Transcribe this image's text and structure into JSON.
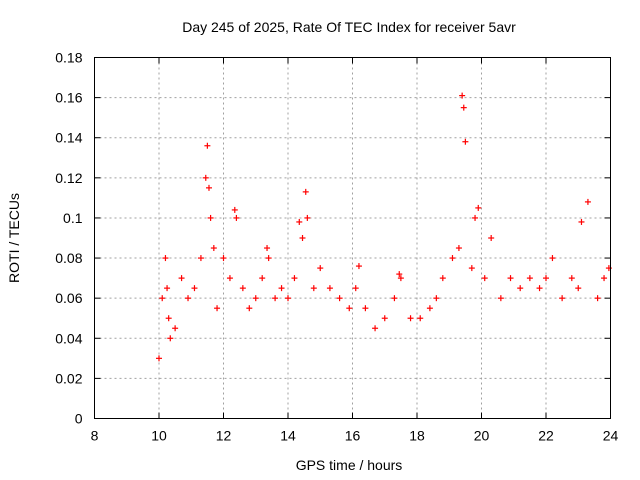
{
  "chart_data": {
    "type": "scatter",
    "title": "Day 245 of 2025, Rate Of TEC Index for receiver 5avr",
    "xlabel": "GPS time / hours",
    "ylabel": "ROTI / TECUs",
    "xlim": [
      8,
      24
    ],
    "ylim": [
      0,
      0.18
    ],
    "xticks": [
      "8",
      "10",
      "12",
      "14",
      "16",
      "18",
      "20",
      "22",
      "24"
    ],
    "yticks": [
      "0",
      "0.02",
      "0.04",
      "0.06",
      "0.08",
      "0.1",
      "0.12",
      "0.14",
      "0.16",
      "0.18"
    ],
    "grid": true,
    "marker": "+",
    "series": [
      {
        "color": "#ff0000",
        "x": [
          10.0,
          10.1,
          10.2,
          10.25,
          10.3,
          10.35,
          10.5,
          10.7,
          10.9,
          11.1,
          11.3,
          11.45,
          11.5,
          11.55,
          11.6,
          11.7,
          11.8,
          12.0,
          12.2,
          12.35,
          12.4,
          12.6,
          12.8,
          13.0,
          13.2,
          13.35,
          13.4,
          13.6,
          13.8,
          14.0,
          14.2,
          14.35,
          14.45,
          14.55,
          14.6,
          14.8,
          15.0,
          15.3,
          15.6,
          15.9,
          16.1,
          16.2,
          16.4,
          16.7,
          17.0,
          17.3,
          17.45,
          17.5,
          17.8,
          18.1,
          18.4,
          18.6,
          18.8,
          19.1,
          19.3,
          19.4,
          19.45,
          19.5,
          19.7,
          19.8,
          19.9,
          20.1,
          20.3,
          20.6,
          20.9,
          21.2,
          21.5,
          21.8,
          22.0,
          22.2,
          22.5,
          22.8,
          23.0,
          23.1,
          23.3,
          23.6,
          23.8,
          23.95
        ],
        "y": [
          0.03,
          0.06,
          0.08,
          0.065,
          0.05,
          0.04,
          0.045,
          0.07,
          0.06,
          0.065,
          0.08,
          0.12,
          0.136,
          0.115,
          0.1,
          0.085,
          0.055,
          0.08,
          0.07,
          0.104,
          0.1,
          0.065,
          0.055,
          0.06,
          0.07,
          0.085,
          0.08,
          0.06,
          0.065,
          0.06,
          0.07,
          0.098,
          0.09,
          0.113,
          0.1,
          0.065,
          0.075,
          0.065,
          0.06,
          0.055,
          0.065,
          0.076,
          0.055,
          0.045,
          0.05,
          0.06,
          0.072,
          0.07,
          0.05,
          0.05,
          0.055,
          0.06,
          0.07,
          0.08,
          0.085,
          0.161,
          0.155,
          0.138,
          0.075,
          0.1,
          0.105,
          0.07,
          0.09,
          0.06,
          0.07,
          0.065,
          0.07,
          0.065,
          0.07,
          0.08,
          0.06,
          0.07,
          0.065,
          0.098,
          0.108,
          0.06,
          0.07,
          0.075
        ]
      }
    ]
  }
}
